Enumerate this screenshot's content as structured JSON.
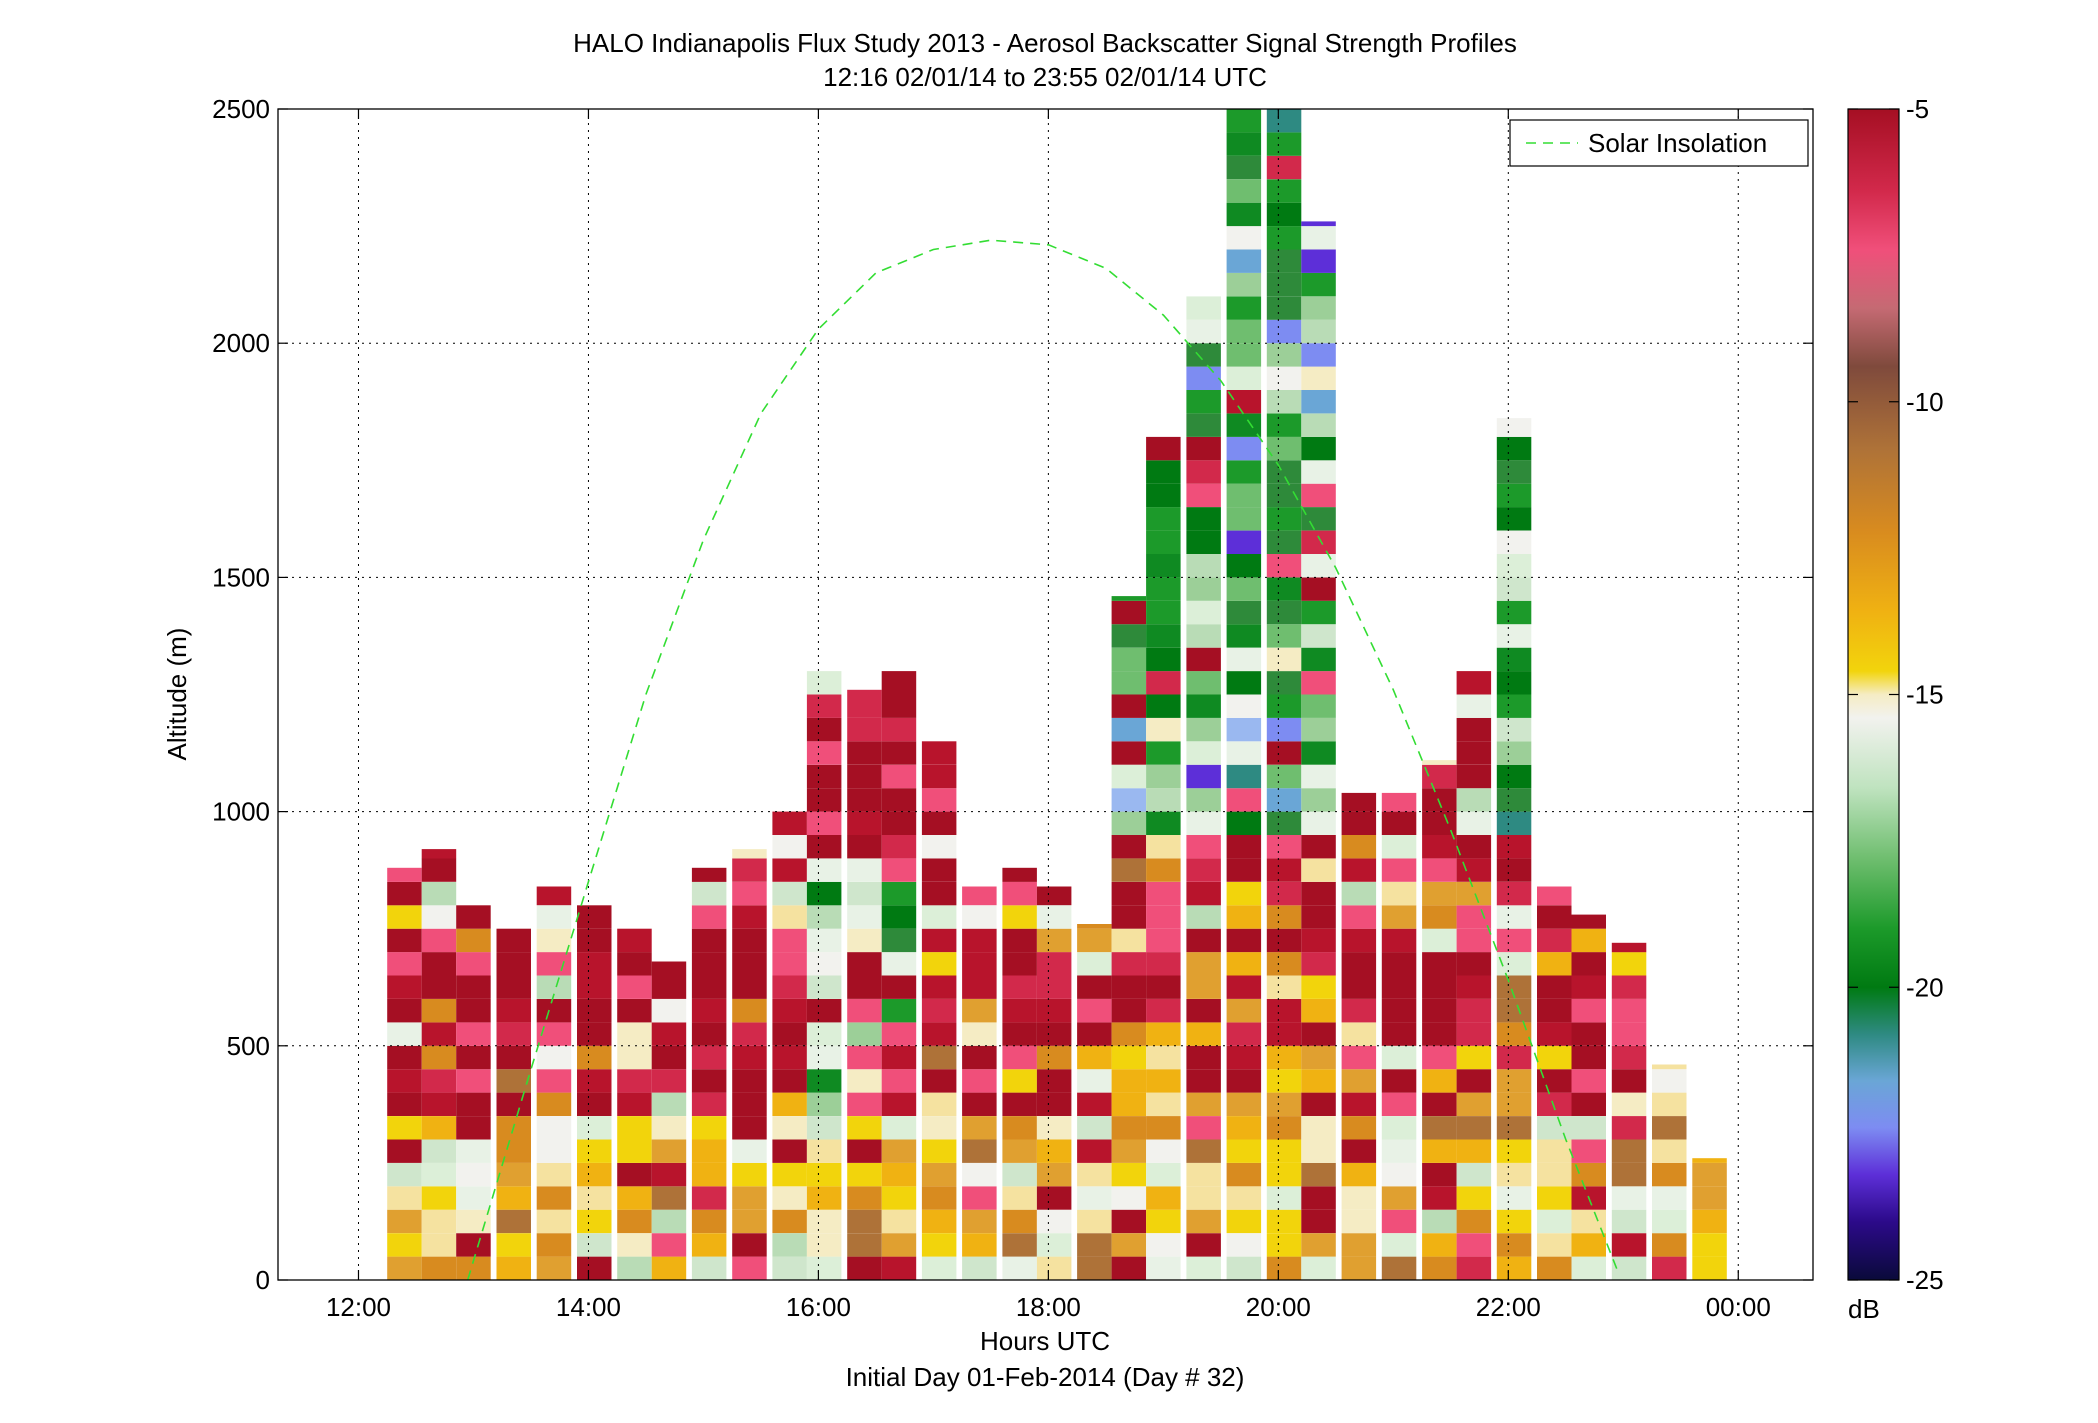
{
  "chart_data": {
    "type": "heatmap",
    "title": "HALO Indianapolis Flux Study 2013 - Aerosol Backscatter Signal Strength Profiles",
    "subtitle": "12:16 02/01/14 to 23:55 02/01/14  UTC",
    "xlabel": "Hours UTC",
    "xlabel2": "Initial Day 01-Feb-2014 (Day # 32)",
    "ylabel": "Altitude (m)",
    "x_ticks": [
      {
        "value": 12,
        "label": "12:00"
      },
      {
        "value": 14,
        "label": "14:00"
      },
      {
        "value": 16,
        "label": "16:00"
      },
      {
        "value": 18,
        "label": "18:00"
      },
      {
        "value": 20,
        "label": "20:00"
      },
      {
        "value": 22,
        "label": "22:00"
      },
      {
        "value": 24,
        "label": "00:00"
      }
    ],
    "y_ticks": [
      0,
      500,
      1000,
      1500,
      2000,
      2500
    ],
    "xlim": [
      11.3,
      24.65
    ],
    "ylim": [
      0,
      2500
    ],
    "grid": true,
    "colorbar": {
      "label": "dB",
      "range": [
        -25,
        -5
      ],
      "ticks": [
        -5,
        -10,
        -15,
        -20,
        -25
      ]
    },
    "legend": {
      "position": "top-right",
      "entries": [
        "Solar Insolation"
      ]
    },
    "solar_insolation": {
      "style": "dashed",
      "color": "#33dd33",
      "points": [
        [
          12.95,
          0
        ],
        [
          13.5,
          450
        ],
        [
          14.0,
          850
        ],
        [
          14.5,
          1250
        ],
        [
          15.0,
          1580
        ],
        [
          15.5,
          1850
        ],
        [
          16.0,
          2030
        ],
        [
          16.5,
          2150
        ],
        [
          17.0,
          2200
        ],
        [
          17.5,
          2220
        ],
        [
          18.0,
          2210
        ],
        [
          18.5,
          2160
        ],
        [
          19.0,
          2060
        ],
        [
          19.5,
          1920
        ],
        [
          20.0,
          1740
        ],
        [
          20.5,
          1520
        ],
        [
          21.0,
          1260
        ],
        [
          21.5,
          960
        ],
        [
          22.0,
          640
        ],
        [
          22.5,
          300
        ],
        [
          22.95,
          20
        ]
      ]
    },
    "profiles": [
      {
        "t": 12.4,
        "top": 880
      },
      {
        "t": 12.7,
        "top": 920
      },
      {
        "t": 13.0,
        "top": 800
      },
      {
        "t": 13.35,
        "top": 750
      },
      {
        "t": 13.7,
        "top": 840
      },
      {
        "t": 14.05,
        "top": 800
      },
      {
        "t": 14.4,
        "top": 750
      },
      {
        "t": 14.7,
        "top": 680
      },
      {
        "t": 15.05,
        "top": 880
      },
      {
        "t": 15.4,
        "top": 920
      },
      {
        "t": 15.75,
        "top": 1000
      },
      {
        "t": 16.05,
        "top": 1300
      },
      {
        "t": 16.4,
        "top": 1260
      },
      {
        "t": 16.7,
        "top": 1300
      },
      {
        "t": 17.05,
        "top": 1150
      },
      {
        "t": 17.4,
        "top": 840
      },
      {
        "t": 17.75,
        "top": 880
      },
      {
        "t": 18.05,
        "top": 840
      },
      {
        "t": 18.4,
        "top": 760
      },
      {
        "t": 18.7,
        "top": 1460
      },
      {
        "t": 19.0,
        "top": 1800
      },
      {
        "t": 19.35,
        "top": 2100
      },
      {
        "t": 19.7,
        "top": 2500
      },
      {
        "t": 20.05,
        "top": 2500
      },
      {
        "t": 20.35,
        "top": 2260
      },
      {
        "t": 20.7,
        "top": 1040
      },
      {
        "t": 21.05,
        "top": 1040
      },
      {
        "t": 21.4,
        "top": 1110
      },
      {
        "t": 21.7,
        "top": 1300
      },
      {
        "t": 22.05,
        "top": 1840
      },
      {
        "t": 22.4,
        "top": 840
      },
      {
        "t": 22.7,
        "top": 780
      },
      {
        "t": 23.05,
        "top": 720
      },
      {
        "t": 23.4,
        "top": 460
      },
      {
        "t": 23.75,
        "top": 260
      }
    ]
  }
}
